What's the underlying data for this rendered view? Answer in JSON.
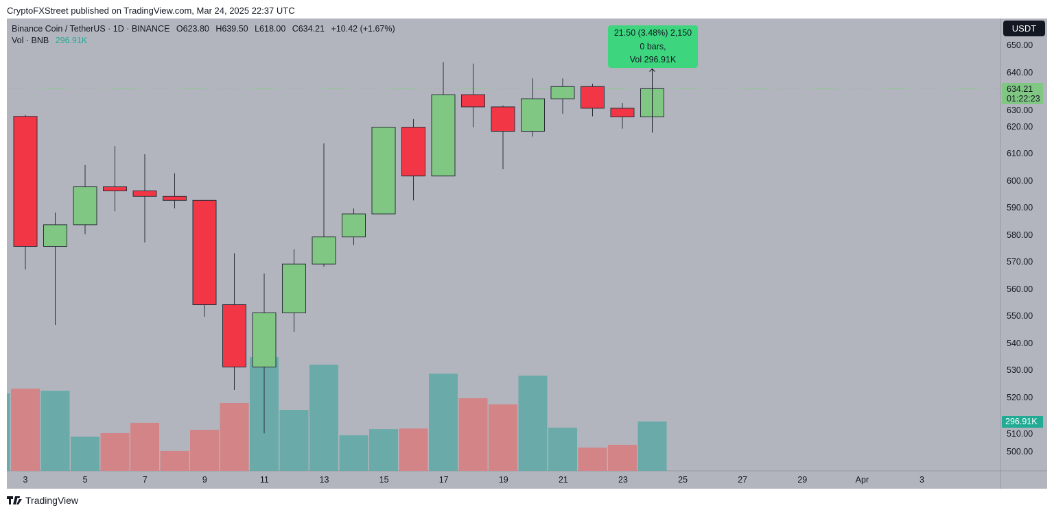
{
  "published": "CryptoFXStreet published on TradingView.com, Mar 24, 2025 22:37 UTC",
  "legend": {
    "symbol": "Binance Coin / TetherUS · 1D · BINANCE",
    "open": "O623.80",
    "high": "H639.50",
    "low": "L618.00",
    "close": "C634.21",
    "change": "+10.42 (+1.67%)",
    "vol_label": "Vol · BNB",
    "vol_value": "296.91K"
  },
  "tooltip": {
    "line1": "21.50 (3.48%) 2,150",
    "line2": "0 bars,",
    "line3": "Vol 296.91K"
  },
  "price_axis": {
    "currency": "USDT",
    "labels": [
      "650.00",
      "640.00",
      "630.00",
      "620.00",
      "610.00",
      "600.00",
      "590.00",
      "580.00",
      "570.00",
      "560.00",
      "550.00",
      "540.00",
      "530.00",
      "520.00",
      "510.00",
      "500.00"
    ],
    "last_price": "634.21",
    "countdown": "01:22:23",
    "last_volume": "296.91K"
  },
  "time_axis": {
    "labels": [
      "3",
      "5",
      "7",
      "9",
      "11",
      "13",
      "15",
      "17",
      "19",
      "21",
      "23",
      "25",
      "27",
      "29",
      "Apr",
      "3"
    ]
  },
  "brand": "TradingView",
  "colors": {
    "up": "#81c784",
    "down": "#f23645",
    "vol_up": "#6aabaa",
    "vol_down": "#d28487",
    "background": "#b2b5be",
    "tooltip": "#3dd67e"
  },
  "chart_data": {
    "type": "candlestick",
    "ylim": [
      490,
      658
    ],
    "candles": [
      {
        "date": "Mar 3",
        "o": 624,
        "h": 624.5,
        "l": 567.5,
        "c": 576
      },
      {
        "date": "Mar 4",
        "o": 576,
        "h": 588.5,
        "l": 547,
        "c": 584
      },
      {
        "date": "Mar 5",
        "o": 584,
        "h": 606,
        "l": 580.5,
        "c": 598
      },
      {
        "date": "Mar 6",
        "o": 598,
        "h": 613,
        "l": 589,
        "c": 596.5
      },
      {
        "date": "Mar 7",
        "o": 596.5,
        "h": 610,
        "l": 577.5,
        "c": 594.5
      },
      {
        "date": "Mar 8",
        "o": 594.5,
        "h": 603,
        "l": 590,
        "c": 593
      },
      {
        "date": "Mar 9",
        "o": 593,
        "h": 593,
        "l": 550,
        "c": 554.5
      },
      {
        "date": "Mar 10",
        "o": 554.5,
        "h": 573.5,
        "l": 523,
        "c": 531.5
      },
      {
        "date": "Mar 11",
        "o": 531.5,
        "h": 566,
        "l": 507,
        "c": 551.5
      },
      {
        "date": "Mar 12",
        "o": 551.5,
        "h": 575,
        "l": 544.5,
        "c": 569.5
      },
      {
        "date": "Mar 13",
        "o": 569.5,
        "h": 614,
        "l": 568.5,
        "c": 579.5
      },
      {
        "date": "Mar 14",
        "o": 579.5,
        "h": 590,
        "l": 576.5,
        "c": 588
      },
      {
        "date": "Mar 15",
        "o": 588,
        "h": 620,
        "l": 588,
        "c": 620
      },
      {
        "date": "Mar 16",
        "o": 620,
        "h": 623,
        "l": 593,
        "c": 602
      },
      {
        "date": "Mar 17",
        "o": 602,
        "h": 644,
        "l": 602,
        "c": 632
      },
      {
        "date": "Mar 18",
        "o": 632,
        "h": 643.5,
        "l": 620,
        "c": 627.5
      },
      {
        "date": "Mar 19",
        "o": 627.5,
        "h": 628,
        "l": 604.5,
        "c": 618.5
      },
      {
        "date": "Mar 20",
        "o": 618.5,
        "h": 638,
        "l": 616.5,
        "c": 630.5
      },
      {
        "date": "Mar 21",
        "o": 630.5,
        "h": 638,
        "l": 625,
        "c": 635
      },
      {
        "date": "Mar 22",
        "o": 635,
        "h": 636,
        "l": 624,
        "c": 627
      },
      {
        "date": "Mar 23",
        "o": 627,
        "h": 629,
        "l": 619.5,
        "c": 623.8
      },
      {
        "date": "Mar 24",
        "o": 623.8,
        "h": 639.5,
        "l": 618,
        "c": 634.21
      }
    ],
    "volume_k": [
      {
        "date": "Mar 2",
        "v": 466,
        "dir": "up"
      },
      {
        "date": "Mar 3",
        "v": 495,
        "dir": "down"
      },
      {
        "date": "Mar 4",
        "v": 482,
        "dir": "up"
      },
      {
        "date": "Mar 5",
        "v": 206,
        "dir": "up"
      },
      {
        "date": "Mar 6",
        "v": 227,
        "dir": "down"
      },
      {
        "date": "Mar 7",
        "v": 289,
        "dir": "down"
      },
      {
        "date": "Mar 8",
        "v": 120,
        "dir": "down"
      },
      {
        "date": "Mar 9",
        "v": 247,
        "dir": "down"
      },
      {
        "date": "Mar 10",
        "v": 408,
        "dir": "down"
      },
      {
        "date": "Mar 11",
        "v": 684,
        "dir": "up"
      },
      {
        "date": "Mar 12",
        "v": 367,
        "dir": "up"
      },
      {
        "date": "Mar 13",
        "v": 639,
        "dir": "up"
      },
      {
        "date": "Mar 14",
        "v": 214,
        "dir": "up"
      },
      {
        "date": "Mar 15",
        "v": 251,
        "dir": "up"
      },
      {
        "date": "Mar 16",
        "v": 255,
        "dir": "down"
      },
      {
        "date": "Mar 17",
        "v": 585,
        "dir": "up"
      },
      {
        "date": "Mar 18",
        "v": 437,
        "dir": "down"
      },
      {
        "date": "Mar 19",
        "v": 400,
        "dir": "down"
      },
      {
        "date": "Mar 20",
        "v": 573,
        "dir": "up"
      },
      {
        "date": "Mar 21",
        "v": 260,
        "dir": "up"
      },
      {
        "date": "Mar 22",
        "v": 140,
        "dir": "down"
      },
      {
        "date": "Mar 23",
        "v": 157,
        "dir": "down"
      },
      {
        "date": "Mar 24",
        "v": 296.91,
        "dir": "up"
      }
    ],
    "measure": {
      "from": 618,
      "to": 639.5
    }
  }
}
